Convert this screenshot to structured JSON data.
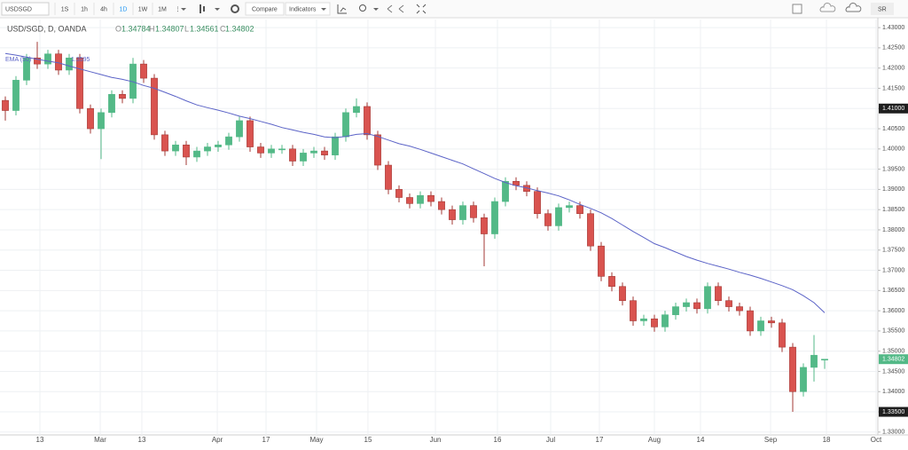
{
  "toolbar": {
    "symbol": "USDSGD",
    "intervals": [
      "1S",
      "1h",
      "4h",
      "1D",
      "1W",
      "1M"
    ],
    "active_interval": 3,
    "compare": "Compare",
    "indicators": "Indicators",
    "right_button": "SR"
  },
  "legend": {
    "title": "USD/SGD, D, OANDA",
    "o": "O",
    "h": "H",
    "l": "L",
    "c": "C"
  },
  "chart_data": {
    "type": "candlestick",
    "colors": {
      "up": "#53b987",
      "down": "#d9534f",
      "down_border": "#a33a36"
    },
    "open": [
      1.412,
      1.4095,
      1.417,
      1.4225,
      1.421,
      1.4235,
      1.4195,
      1.4225,
      1.41,
      1.405,
      1.409,
      1.4135,
      1.4125,
      1.421,
      1.4175,
      1.4035,
      1.3995,
      1.401,
      1.398,
      1.3995,
      1.4005,
      1.401,
      1.403,
      1.407,
      1.4005,
      1.399,
      1.4,
      1.4,
      1.397,
      1.399,
      1.3995,
      1.3985,
      1.403,
      1.409,
      1.4105,
      1.4035,
      1.396,
      1.39,
      1.388,
      1.3865,
      1.3885,
      1.387,
      1.385,
      1.3825,
      1.386,
      1.383,
      1.379,
      1.387,
      1.392,
      1.391,
      1.3895,
      1.384,
      1.381,
      1.3855,
      1.386,
      1.384,
      1.376,
      1.3685,
      1.366,
      1.3625,
      1.3575,
      1.358,
      1.356,
      1.359,
      1.361,
      1.362,
      1.3605,
      1.366,
      1.3625,
      1.361,
      1.36,
      1.355,
      1.3575,
      1.357,
      1.351,
      1.34,
      1.346,
      1.34784
    ],
    "high": [
      1.413,
      1.418,
      1.4235,
      1.4265,
      1.4245,
      1.4245,
      1.4235,
      1.4235,
      1.411,
      1.41,
      1.4145,
      1.4145,
      1.4225,
      1.422,
      1.4185,
      1.4045,
      1.402,
      1.402,
      1.4005,
      1.4015,
      1.402,
      1.404,
      1.408,
      1.408,
      1.4015,
      1.401,
      1.401,
      1.401,
      1.4,
      1.4005,
      1.4005,
      1.404,
      1.41,
      1.4125,
      1.4115,
      1.4045,
      1.397,
      1.391,
      1.389,
      1.3895,
      1.3895,
      1.388,
      1.386,
      1.387,
      1.387,
      1.384,
      1.388,
      1.393,
      1.393,
      1.392,
      1.3905,
      1.385,
      1.3865,
      1.387,
      1.387,
      1.385,
      1.377,
      1.3695,
      1.367,
      1.3635,
      1.359,
      1.359,
      1.36,
      1.362,
      1.363,
      1.363,
      1.367,
      1.367,
      1.3635,
      1.362,
      1.361,
      1.3585,
      1.3585,
      1.358,
      1.352,
      1.347,
      1.354,
      1.34807
    ],
    "low": [
      1.407,
      1.4083,
      1.4158,
      1.4198,
      1.4198,
      1.4183,
      1.4183,
      1.4088,
      1.4038,
      1.3975,
      1.4078,
      1.4113,
      1.4113,
      1.4163,
      1.4023,
      1.3983,
      1.3983,
      1.396,
      1.3968,
      1.3983,
      1.3993,
      1.3998,
      1.4018,
      1.3993,
      1.3978,
      1.3978,
      1.3988,
      1.3958,
      1.3958,
      1.3978,
      1.3973,
      1.3973,
      1.4018,
      1.4078,
      1.4023,
      1.3948,
      1.3888,
      1.3868,
      1.3853,
      1.3853,
      1.3858,
      1.3838,
      1.3813,
      1.3813,
      1.3818,
      1.371,
      1.3778,
      1.3858,
      1.3898,
      1.3883,
      1.3828,
      1.3798,
      1.3798,
      1.3843,
      1.3828,
      1.3748,
      1.3673,
      1.3648,
      1.3613,
      1.3563,
      1.3563,
      1.3548,
      1.3548,
      1.3578,
      1.3598,
      1.3593,
      1.3593,
      1.3613,
      1.3598,
      1.3588,
      1.3538,
      1.3538,
      1.3558,
      1.3498,
      1.335,
      1.3388,
      1.3425,
      1.34561
    ],
    "close": [
      1.4095,
      1.417,
      1.4225,
      1.421,
      1.4235,
      1.4195,
      1.4225,
      1.41,
      1.405,
      1.409,
      1.4135,
      1.4125,
      1.421,
      1.4175,
      1.4035,
      1.3995,
      1.401,
      1.398,
      1.3995,
      1.4005,
      1.401,
      1.403,
      1.407,
      1.4005,
      1.399,
      1.4,
      1.4,
      1.397,
      1.399,
      1.3995,
      1.3985,
      1.403,
      1.409,
      1.4105,
      1.4035,
      1.396,
      1.39,
      1.388,
      1.3865,
      1.3885,
      1.387,
      1.385,
      1.3825,
      1.386,
      1.383,
      1.379,
      1.387,
      1.392,
      1.391,
      1.3895,
      1.384,
      1.381,
      1.3855,
      1.386,
      1.384,
      1.376,
      1.3685,
      1.366,
      1.3625,
      1.3575,
      1.358,
      1.356,
      1.359,
      1.361,
      1.362,
      1.3605,
      1.366,
      1.3625,
      1.361,
      1.36,
      1.355,
      1.3575,
      1.357,
      1.351,
      1.34,
      1.346,
      1.349,
      1.34802
    ],
    "ema": {
      "name": "EMA (50)",
      "color": "#5b63c7",
      "values": [
        1.4236,
        1.4232,
        1.4227,
        1.4222,
        1.4217,
        1.4213,
        1.4205,
        1.4198,
        1.4191,
        1.4184,
        1.4177,
        1.4172,
        1.4166,
        1.4157,
        1.415,
        1.414,
        1.413,
        1.4119,
        1.4109,
        1.4102,
        1.4096,
        1.4089,
        1.4081,
        1.4075,
        1.4068,
        1.4061,
        1.4053,
        1.4047,
        1.4041,
        1.4036,
        1.403,
        1.4028,
        1.4031,
        1.4036,
        1.4038,
        1.4031,
        1.4022,
        1.4013,
        1.4007,
        1.3999,
        1.399,
        1.3981,
        1.3972,
        1.3963,
        1.3951,
        1.3939,
        1.3927,
        1.3917,
        1.3909,
        1.3904,
        1.3897,
        1.3891,
        1.3884,
        1.3874,
        1.3863,
        1.3853,
        1.3842,
        1.3828,
        1.3812,
        1.3796,
        1.3781,
        1.3766,
        1.3756,
        1.3745,
        1.3734,
        1.3725,
        1.3717,
        1.371,
        1.3703,
        1.3695,
        1.3688,
        1.368,
        1.3671,
        1.3662,
        1.3652,
        1.3637,
        1.362,
        1.3595
      ]
    },
    "xlim": [
      -0.5,
      82
    ],
    "xticks": [
      {
        "value": 3.25,
        "label": "13"
      },
      {
        "value": 8.92,
        "label": "Mar"
      },
      {
        "value": 12.83,
        "label": "13"
      },
      {
        "value": 19.92,
        "label": "Apr"
      },
      {
        "value": 24.5,
        "label": "17"
      },
      {
        "value": 29.25,
        "label": "May"
      },
      {
        "value": 34.08,
        "label": "15"
      },
      {
        "value": 40.42,
        "label": "Jun"
      },
      {
        "value": 46.25,
        "label": "16"
      },
      {
        "value": 51.25,
        "label": "Jul"
      },
      {
        "value": 55.83,
        "label": "17"
      },
      {
        "value": 61,
        "label": "Aug"
      },
      {
        "value": 65.33,
        "label": "14"
      },
      {
        "value": 71.92,
        "label": "Sep"
      },
      {
        "value": 77.17,
        "label": "18"
      },
      {
        "value": 81.83,
        "label": "Oct"
      }
    ],
    "ylim": [
      1.3293,
      1.432
    ],
    "yticks": [
      {
        "value": 1.43,
        "label": "1.43000"
      },
      {
        "value": 1.425,
        "label": "1.42500"
      },
      {
        "value": 1.42,
        "label": "1.42000"
      },
      {
        "value": 1.415,
        "label": "1.41500"
      },
      {
        "value": 1.41,
        "label": "1.41000",
        "style": "dark"
      },
      {
        "value": 1.405,
        "label": "1.40500"
      },
      {
        "value": 1.4,
        "label": "1.40000"
      },
      {
        "value": 1.395,
        "label": "1.39500"
      },
      {
        "value": 1.39,
        "label": "1.39000"
      },
      {
        "value": 1.385,
        "label": "1.38500"
      },
      {
        "value": 1.38,
        "label": "1.38000"
      },
      {
        "value": 1.375,
        "label": "1.37500"
      },
      {
        "value": 1.37,
        "label": "1.37000"
      },
      {
        "value": 1.365,
        "label": "1.36500"
      },
      {
        "value": 1.36,
        "label": "1.36000"
      },
      {
        "value": 1.355,
        "label": "1.35500"
      },
      {
        "value": 1.35,
        "label": "1.35000"
      },
      {
        "value": 1.345,
        "label": "1.34500"
      },
      {
        "value": 1.34,
        "label": "1.34000"
      },
      {
        "value": 1.335,
        "label": "1.33500",
        "style": "dark"
      },
      {
        "value": 1.33,
        "label": "1.33000"
      }
    ],
    "grid": true
  }
}
